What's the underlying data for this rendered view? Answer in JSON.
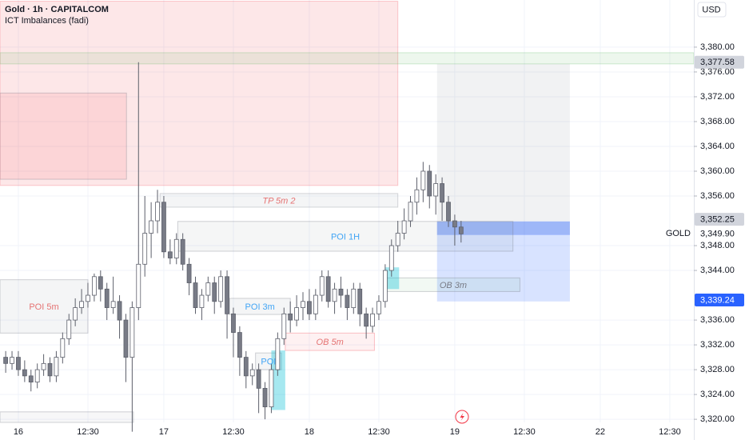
{
  "chart_data": {
    "type": "candlestick",
    "title": "Gold · 1h · CAPITALCOM",
    "subtitle": "ICT Imbalances (fadi)",
    "currency": "USD",
    "symbol": "GOLD",
    "x": [
      -2,
      -1,
      0,
      1,
      2,
      3,
      4,
      5,
      6,
      7,
      8,
      9,
      10,
      11,
      12,
      13,
      14,
      15,
      16,
      17,
      18,
      19,
      20,
      21,
      22,
      23,
      24,
      25,
      26,
      27,
      28,
      29,
      30,
      31,
      32,
      33,
      34,
      35,
      36,
      37,
      38,
      39,
      40,
      41,
      42,
      43,
      44,
      45,
      46,
      47,
      48,
      49,
      50,
      51,
      52,
      53,
      54,
      55,
      56,
      57,
      58,
      59,
      60,
      61,
      62,
      63,
      64,
      65,
      66,
      67,
      68,
      69,
      70
    ],
    "open": [
      3330,
      3329,
      3330,
      3328,
      3327,
      3326,
      3328,
      3329,
      3327,
      3330,
      3333,
      3336,
      3338,
      3339,
      3340,
      3343,
      3341,
      3338,
      3339,
      3336,
      3330,
      3338,
      3345,
      3350,
      3352,
      3355,
      3347,
      3346,
      3349,
      3345,
      3342,
      3338,
      3340,
      3342,
      3339,
      3343,
      3337,
      3334,
      3330,
      3327,
      3328,
      3325,
      3322,
      3328,
      3333,
      3337,
      3336,
      3338,
      3339,
      3337,
      3340,
      3343,
      3339,
      3341,
      3340,
      3338,
      3341,
      3337,
      3335,
      3337,
      3339,
      3344,
      3348,
      3350,
      3352,
      3355,
      3357,
      3360,
      3356,
      3358,
      3355,
      3352,
      3351
    ],
    "high": [
      3331,
      3331,
      3331,
      3329.5,
      3328,
      3329,
      3330.5,
      3330,
      3331,
      3334,
      3337,
      3339.5,
      3341,
      3342,
      3343.5,
      3344,
      3342,
      3343,
      3340,
      3337,
      3339,
      3377.58,
      3356,
      3355,
      3357,
      3356,
      3349,
      3350,
      3350,
      3346,
      3343,
      3341,
      3343,
      3343,
      3344,
      3344,
      3338,
      3335,
      3331,
      3329,
      3329,
      3326,
      3329,
      3334,
      3338,
      3339,
      3340,
      3340.5,
      3341,
      3341,
      3344,
      3344,
      3342,
      3343,
      3341,
      3342,
      3342,
      3338,
      3338,
      3340,
      3345,
      3349,
      3352,
      3354,
      3356,
      3359,
      3361.5,
      3361,
      3359.5,
      3359,
      3356,
      3353,
      3352
    ],
    "low": [
      3327.5,
      3328,
      3327,
      3326,
      3324.5,
      3325,
      3327,
      3326,
      3326,
      3329,
      3332,
      3335,
      3337,
      3338,
      3339,
      3339,
      3336,
      3337,
      3333,
      3326,
      3318,
      3336,
      3343,
      3346,
      3350,
      3346,
      3345,
      3345,
      3344,
      3340,
      3337,
      3336,
      3339,
      3337,
      3338,
      3333,
      3330,
      3327,
      3325,
      3325.5,
      3321,
      3320,
      3321,
      3327,
      3332,
      3334,
      3335,
      3336,
      3336,
      3336,
      3339,
      3338,
      3337,
      3338,
      3336,
      3337,
      3335,
      3333,
      3334,
      3336,
      3338,
      3343,
      3347,
      3349,
      3351,
      3353,
      3355,
      3354,
      3353,
      3352,
      3351,
      3348,
      3348.5
    ],
    "close": [
      3329,
      3330,
      3328,
      3327,
      3326,
      3328,
      3329,
      3327,
      3330,
      3333,
      3336,
      3338,
      3339,
      3340,
      3343,
      3341,
      3338,
      3339,
      3336,
      3330,
      3338,
      3345,
      3350,
      3352,
      3355,
      3347,
      3346,
      3349,
      3345,
      3342,
      3338,
      3340,
      3342,
      3339,
      3343,
      3337,
      3334,
      3330,
      3327,
      3328,
      3325,
      3322,
      3328,
      3333,
      3337,
      3336,
      3338,
      3339,
      3337,
      3340,
      3343,
      3339,
      3341,
      3340,
      3338,
      3341,
      3337,
      3335,
      3337,
      3339,
      3344,
      3348,
      3350,
      3352,
      3355,
      3357,
      3360,
      3356,
      3358,
      3355,
      3352,
      3351,
      3349.9
    ],
    "up_color": "#ffffff",
    "down_color": "#787b86",
    "edge_color": "#5d606b",
    "xlim": [
      -2.9,
      106.8
    ],
    "ylim": [
      3319.5,
      3387.6
    ],
    "xticks": [
      {
        "value": 0,
        "label": "16"
      },
      {
        "value": 11,
        "label": "12:30"
      },
      {
        "value": 23,
        "label": "17"
      },
      {
        "value": 34,
        "label": "12:30"
      },
      {
        "value": 46,
        "label": "18"
      },
      {
        "value": 57,
        "label": "12:30"
      },
      {
        "value": 69,
        "label": "19"
      },
      {
        "value": 80,
        "label": "12:30"
      },
      {
        "value": 92,
        "label": "22"
      },
      {
        "value": 103,
        "label": "12:30"
      }
    ],
    "yticks": [
      {
        "value": 3380,
        "label": "3,380.00"
      },
      {
        "value": 3376,
        "label": "3,376.00"
      },
      {
        "value": 3372,
        "label": "3,372.00"
      },
      {
        "value": 3368,
        "label": "3,368.00"
      },
      {
        "value": 3364,
        "label": "3,364.00"
      },
      {
        "value": 3360,
        "label": "3,360.00"
      },
      {
        "value": 3356,
        "label": "3,356.00"
      },
      {
        "value": 3348,
        "label": "3,348.00"
      },
      {
        "value": 3344,
        "label": "3,344.00"
      },
      {
        "value": 3336,
        "label": "3,336.00"
      },
      {
        "value": 3332,
        "label": "3,332.00"
      },
      {
        "value": 3328,
        "label": "3,328.00"
      },
      {
        "value": 3324,
        "label": "3,324.00"
      },
      {
        "value": 3320,
        "label": "3,320.00"
      }
    ],
    "grid": true,
    "zones": [
      {
        "x": [
          -2.9,
          60
        ],
        "y": [
          3357.7,
          3387.4
        ],
        "color": "rgba(242,54,69,0.12)",
        "border": "rgba(242,54,69,0.25)"
      },
      {
        "x": [
          -2.9,
          17.1
        ],
        "y": [
          3358.7,
          3372.6
        ],
        "color": "rgba(242,54,69,0.10)",
        "border": "rgba(120,123,134,0.35)"
      },
      {
        "x": [
          -2.9,
          106.8
        ],
        "y": [
          3377.3,
          3379.1
        ],
        "color": "rgba(76,175,80,0.10)",
        "border": "rgba(76,175,80,0.25)"
      },
      {
        "x": [
          66.2,
          87.2
        ],
        "y": [
          3349.8,
          3377.3
        ],
        "color": "rgba(120,123,134,0.10)",
        "border": "rgba(120,123,134,0.0)"
      },
      {
        "x": [
          66.2,
          87.2
        ],
        "y": [
          3339,
          3351.9
        ],
        "color": "rgba(41,98,255,0.18)",
        "border": "rgba(41,98,255,0.0)"
      },
      {
        "x": [
          66.2,
          87.2
        ],
        "y": [
          3349.7,
          3351.9
        ],
        "color": "rgba(41,98,255,0.28)",
        "border": "rgba(41,98,255,0.0)"
      },
      {
        "x": [
          22.4,
          60
        ],
        "y": [
          3354.2,
          3356.4
        ],
        "color": "rgba(120,123,134,0.08)",
        "border": "rgba(120,123,134,0.3)",
        "label": "TP 5m 2",
        "label_color": "#e57373",
        "italic": true
      },
      {
        "x": [
          25.2,
          78.2
        ],
        "y": [
          3347.1,
          3351.9
        ],
        "color": "rgba(120,123,134,0.07)",
        "border": "rgba(120,123,134,0.35)",
        "label": "POI 1H",
        "label_color": "#42a5f5",
        "italic": false
      },
      {
        "x": [
          58.2,
          79.3
        ],
        "y": [
          3340.6,
          3342.8
        ],
        "color": "rgba(76,175,80,0.07)",
        "border": "rgba(120,123,134,0.35)",
        "label": "OB 3m",
        "label_color": "#787b86",
        "italic": true
      },
      {
        "x": [
          -2.9,
          11
        ],
        "y": [
          3333.9,
          3342.5
        ],
        "color": "rgba(120,123,134,0.08)",
        "border": "rgba(120,123,134,0.35)",
        "label": "POI 5m",
        "label_color": "#e57373",
        "italic": false
      },
      {
        "x": [
          33.4,
          43
        ],
        "y": [
          3336.9,
          3339.5
        ],
        "color": "rgba(120,123,134,0.08)",
        "border": "rgba(120,123,134,0.35)",
        "label": "POI 3m",
        "label_color": "#42a5f5",
        "italic": false
      },
      {
        "x": [
          42.2,
          56.3
        ],
        "y": [
          3331.1,
          3333.9
        ],
        "color": "rgba(242,54,69,0.07)",
        "border": "rgba(242,54,69,0.3)",
        "label": "OB 5m",
        "label_color": "#e57373",
        "italic": true
      },
      {
        "x": [
          37.5,
          41.6
        ],
        "y": [
          3328,
          3330.7
        ],
        "color": "rgba(120,123,134,0.08)",
        "border": "rgba(120,123,134,0.35)",
        "label": "POI",
        "label_color": "#42a5f5",
        "italic": false
      },
      {
        "x": [
          40,
          42.2
        ],
        "y": [
          3321.5,
          3331.1
        ],
        "color": "rgba(0,188,212,0.35)",
        "border": "rgba(0,188,212,0.0)"
      },
      {
        "x": [
          58,
          60.2
        ],
        "y": [
          3341,
          3344.5
        ],
        "color": "rgba(0,188,212,0.35)",
        "border": "rgba(0,188,212,0.0)"
      },
      {
        "x": [
          -2.9,
          18.2
        ],
        "y": [
          3319.5,
          3321.2
        ],
        "color": "rgba(120,123,134,0.06)",
        "border": "rgba(120,123,134,0.35)"
      }
    ],
    "price_labels": [
      {
        "value": 3377.58,
        "label": "3,377.58",
        "bg": "#d1d4dc",
        "fg": "#131722"
      },
      {
        "value": 3352.25,
        "label": "3,352.25",
        "bg": "#d1d4dc",
        "fg": "#131722"
      },
      {
        "value": 3349.9,
        "label": "3,349.90",
        "bg": "#ffffff",
        "fg": "#131722"
      },
      {
        "value": 3339.24,
        "label": "3,339.24",
        "bg": "#2962ff",
        "fg": "#ffffff"
      }
    ]
  }
}
